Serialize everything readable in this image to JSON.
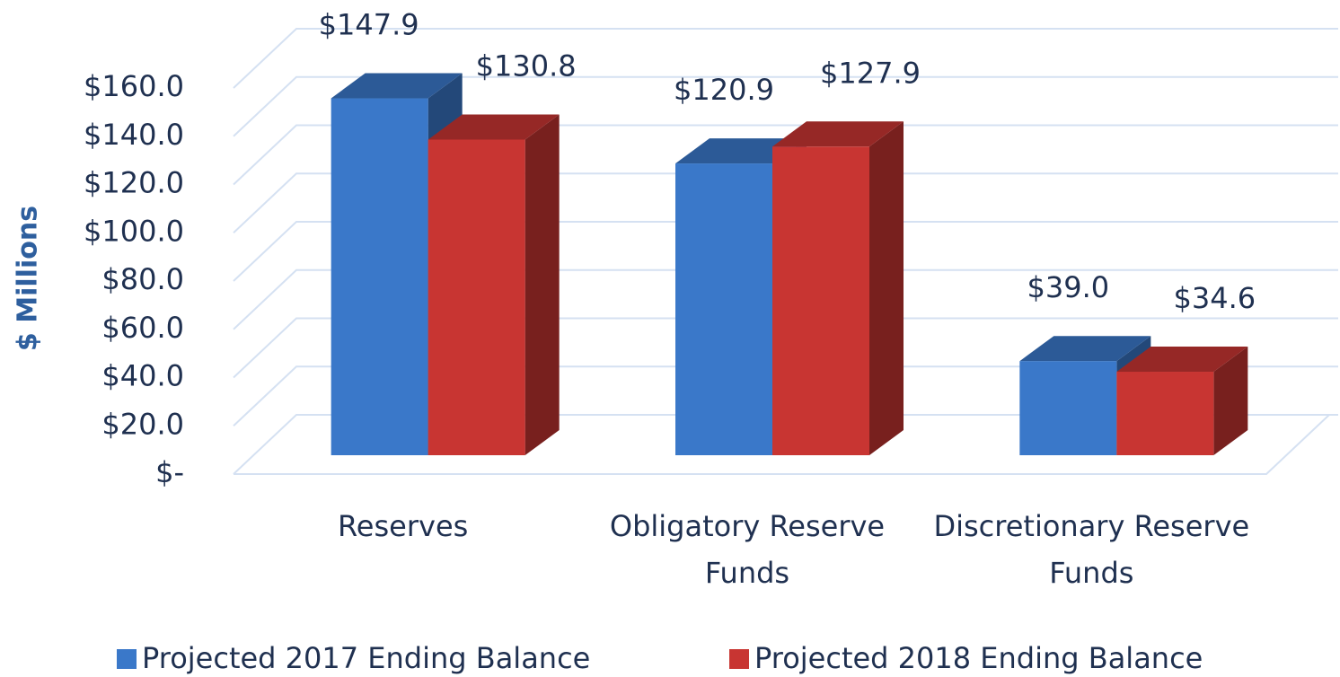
{
  "chart_data": {
    "type": "bar3d",
    "ylabel": "$ Millions",
    "categories": [
      "Reserves",
      "Obligatory Reserve Funds",
      "Discretionary Reserve Funds"
    ],
    "series": [
      {
        "name": "Projected 2017 Ending Balance",
        "color": "#3a78c9",
        "values": [
          147.9,
          120.9,
          39.0
        ],
        "value_labels": [
          "$147.9",
          "$120.9",
          "$39.0"
        ]
      },
      {
        "name": "Projected 2018 Ending Balance",
        "color": "#c83532",
        "values": [
          130.8,
          127.9,
          34.6
        ],
        "value_labels": [
          "$130.8",
          "$127.9",
          "$34.6"
        ]
      }
    ],
    "ylim": [
      0,
      160
    ],
    "yticks": [
      {
        "value": 0,
        "label": "$-"
      },
      {
        "value": 20,
        "label": "$20.0"
      },
      {
        "value": 40,
        "label": "$40.0"
      },
      {
        "value": 60,
        "label": "$60.0"
      },
      {
        "value": 80,
        "label": "$80.0"
      },
      {
        "value": 100,
        "label": "$100.0"
      },
      {
        "value": 120,
        "label": "$120.0"
      },
      {
        "value": 140,
        "label": "$140.0"
      },
      {
        "value": 160,
        "label": "$160.0"
      }
    ],
    "grid": true,
    "legend": "bottom"
  }
}
